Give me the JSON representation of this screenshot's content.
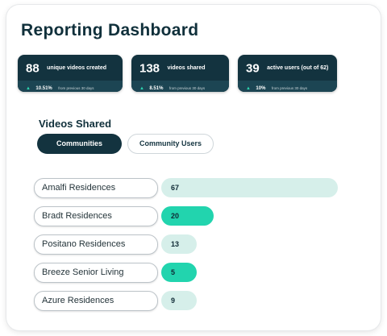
{
  "header": {
    "title": "Reporting Dashboard"
  },
  "stats": [
    {
      "value": "88",
      "label": "unique videos created",
      "change": "10.51%",
      "period": "from previous 30 days",
      "arrow_icon": "arrow-up-icon"
    },
    {
      "value": "138",
      "label": "videos shared",
      "change": "8.51%",
      "period": "from previous 30 days",
      "arrow_icon": "arrow-up-icon"
    },
    {
      "value": "39",
      "label": "active users (out of 62)",
      "change": "10%",
      "period": "from previous 30 days",
      "arrow_icon": "arrow-up-icon"
    }
  ],
  "videos_shared": {
    "title": "Videos Shared",
    "tabs": [
      {
        "label": "Communities",
        "active": true
      },
      {
        "label": "Community Users",
        "active": false
      }
    ],
    "rows": [
      {
        "name": "Amalfi Residences",
        "value": 67,
        "color": "#d6efea"
      },
      {
        "name": "Bradt Residences",
        "value": 20,
        "color": "#22d4ae"
      },
      {
        "name": "Positano Residences",
        "value": 13,
        "color": "#d6efea"
      },
      {
        "name": "Breeze Senior Living",
        "value": 5,
        "color": "#22d4ae"
      },
      {
        "name": "Azure Residences",
        "value": 9,
        "color": "#d6efea"
      }
    ],
    "max_value": 67
  },
  "colors": {
    "primary_dark": "#13333f",
    "accent_teal": "#22d4ae",
    "light_teal": "#d6efea"
  }
}
